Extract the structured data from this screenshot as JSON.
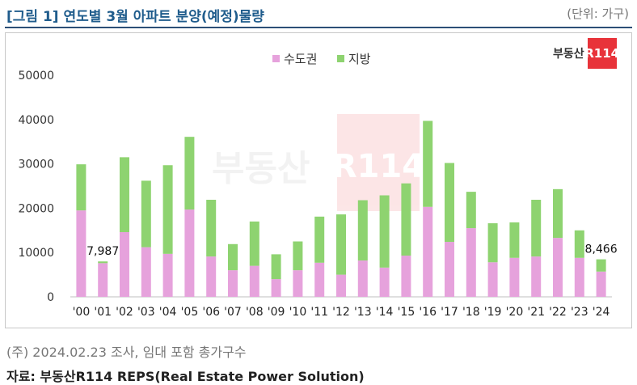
{
  "header": {
    "title": "[그림 1] 연도별 3월 아파트 분양(예정)물량",
    "unit": "(단위: 가구)"
  },
  "logo": {
    "text": "부동산",
    "box": "R114",
    "watermark_text": "부동산",
    "watermark_box": "R114"
  },
  "footer": {
    "note": "(주) 2024.02.23 조사, 임대 포함 총가구수",
    "source": "자료: 부동산R114 REPS(Real Estate Power Solution)"
  },
  "colors": {
    "metro": "#e6a2dc",
    "regional": "#8ed370",
    "title": "#1f5c8c"
  },
  "chart_data": {
    "type": "bar",
    "stacked": true,
    "categories": [
      "'00",
      "'01",
      "'02",
      "'03",
      "'04",
      "'05",
      "'06",
      "'07",
      "'08",
      "'09",
      "'10",
      "'11",
      "'12",
      "'13",
      "'14",
      "'15",
      "'16",
      "'17",
      "'18",
      "'19",
      "'20",
      "'21",
      "'22",
      "'23",
      "'24"
    ],
    "series": [
      {
        "name": "수도권",
        "color": "#e6a2dc",
        "values": [
          19500,
          7600,
          14600,
          11200,
          9700,
          19700,
          9100,
          6000,
          7000,
          4000,
          6000,
          7700,
          5000,
          8200,
          6600,
          9300,
          20300,
          12400,
          15500,
          7800,
          8800,
          9100,
          13300,
          8800,
          5700
        ]
      },
      {
        "name": "지방",
        "color": "#8ed370",
        "values": [
          10400,
          387,
          16900,
          15000,
          20000,
          16400,
          12800,
          5900,
          10000,
          5600,
          6500,
          10400,
          13600,
          13600,
          16300,
          16300,
          19400,
          17800,
          8200,
          8800,
          8000,
          12800,
          11000,
          6200,
          2766
        ]
      }
    ],
    "totals": [
      29900,
      7987,
      31500,
      26200,
      29700,
      36100,
      21900,
      11900,
      17000,
      9600,
      12500,
      18100,
      18600,
      21800,
      22900,
      25600,
      39700,
      30200,
      23700,
      16600,
      16800,
      21900,
      24300,
      15000,
      8466
    ],
    "data_labels": [
      {
        "category": "'01",
        "text": "7,987"
      },
      {
        "category": "'24",
        "text": "8,466"
      }
    ],
    "ylim": [
      0,
      50000
    ],
    "yticks": [
      "0",
      "10000",
      "20000",
      "30000",
      "40000",
      "50000"
    ],
    "yticks_values": [
      0,
      10000,
      20000,
      30000,
      40000,
      50000
    ],
    "grid": false,
    "legend": "top-center",
    "title": "[그림 1] 연도별 3월 아파트 분양(예정)물량",
    "xlabel": "",
    "ylabel": ""
  }
}
